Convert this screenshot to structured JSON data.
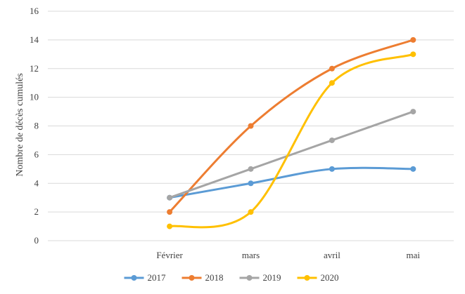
{
  "chart_data": {
    "type": "line",
    "title": "",
    "xlabel": "",
    "ylabel": "Nombre de décès cumulés",
    "categories": [
      "Février",
      "mars",
      "avril",
      "mai"
    ],
    "x_axis_leading_empty_categories": 1,
    "ylim": [
      0,
      16
    ],
    "yticks": [
      0,
      2,
      4,
      6,
      8,
      10,
      12,
      14,
      16
    ],
    "grid": true,
    "smooth": true,
    "legend_position": "bottom",
    "series": [
      {
        "name": "2017",
        "color": "#5B9BD5",
        "values": [
          3,
          4,
          5,
          5
        ]
      },
      {
        "name": "2018",
        "color": "#ED7D31",
        "values": [
          2,
          8,
          12,
          14
        ]
      },
      {
        "name": "2019",
        "color": "#A5A5A5",
        "values": [
          3,
          5,
          7,
          9
        ]
      },
      {
        "name": "2020",
        "color": "#FFC000",
        "values": [
          1,
          2,
          11,
          13
        ]
      }
    ]
  }
}
